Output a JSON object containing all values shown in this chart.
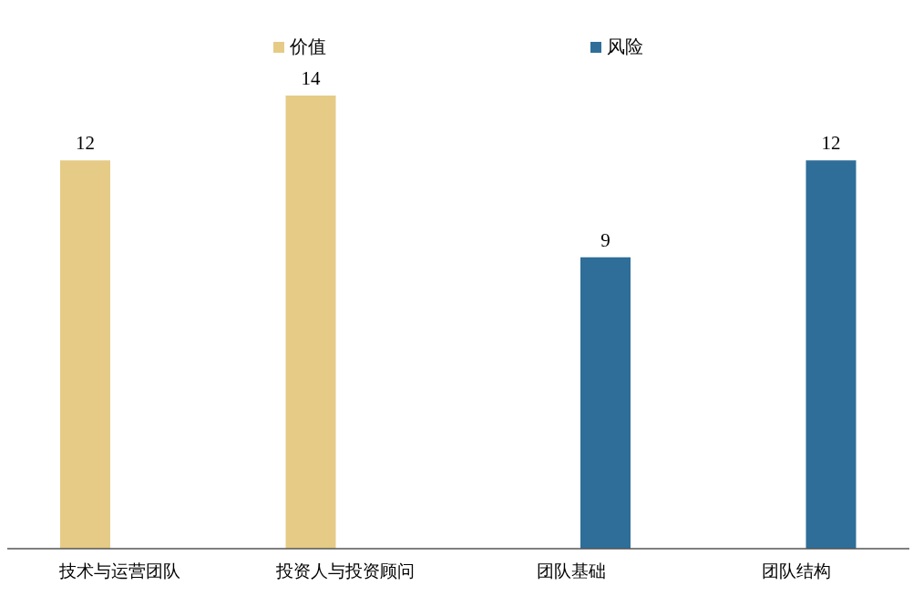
{
  "chart_data": {
    "type": "bar",
    "categories": [
      "技术与运营团队",
      "投资人与投资顾问",
      "团队基础",
      "团队结构"
    ],
    "series": [
      {
        "name": "价值",
        "color": "#e5cb86",
        "values": [
          12,
          14,
          null,
          null
        ]
      },
      {
        "name": "风险",
        "color": "#2e6e99",
        "values": [
          null,
          null,
          9,
          12
        ]
      }
    ],
    "data_labels": true,
    "legend": "top",
    "grid": false
  }
}
